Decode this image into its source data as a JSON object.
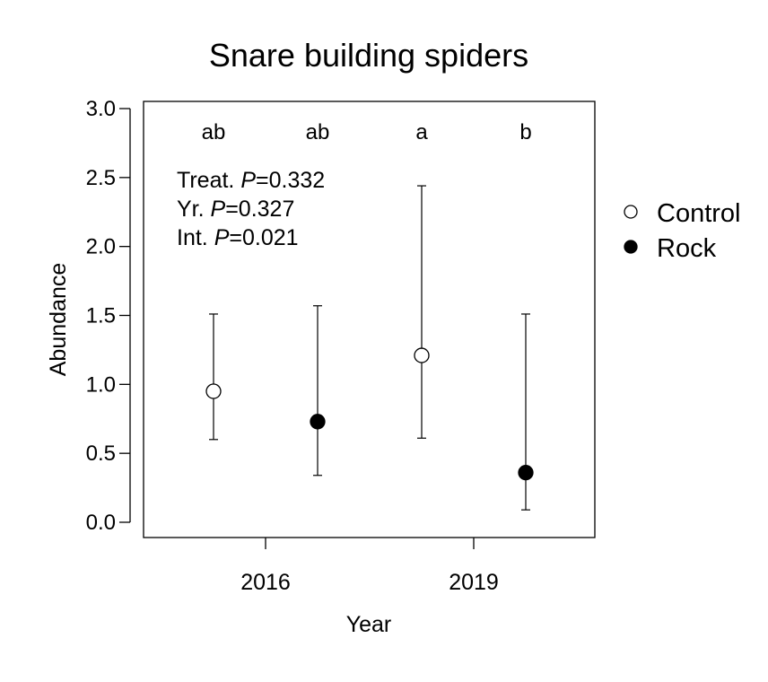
{
  "chart_data": {
    "type": "scatter",
    "title": "Snare building spiders",
    "xlabel": "Year",
    "ylabel": "Abundance",
    "ylim": [
      0,
      3
    ],
    "yticks": [
      "0.0",
      "0.5",
      "1.0",
      "1.5",
      "2.0",
      "2.5",
      "3.0"
    ],
    "categories": [
      "2016",
      "2019"
    ],
    "series": [
      {
        "name": "Control",
        "marker": "open-circle",
        "points": [
          {
            "x": "2016",
            "y": 0.95,
            "lower": 0.6,
            "upper": 1.51,
            "letter": "ab"
          },
          {
            "x": "2019",
            "y": 1.21,
            "lower": 0.61,
            "upper": 2.44,
            "letter": "a"
          }
        ]
      },
      {
        "name": "Rock",
        "marker": "filled-circle",
        "points": [
          {
            "x": "2016",
            "y": 0.73,
            "lower": 0.34,
            "upper": 1.57,
            "letter": "ab"
          },
          {
            "x": "2019",
            "y": 0.36,
            "lower": 0.09,
            "upper": 1.51,
            "letter": "b"
          }
        ]
      }
    ],
    "annotations": [
      {
        "prefix": "Treat. ",
        "italic": "P",
        "suffix": "=0.332"
      },
      {
        "prefix": "Yr. ",
        "italic": "P",
        "suffix": "=0.327"
      },
      {
        "prefix": "Int. ",
        "italic": "P",
        "suffix": "=0.021"
      }
    ],
    "legend_position": "right",
    "grid": false
  },
  "colors": {
    "control_fill": "#ffffff",
    "rock_fill": "#000000",
    "stroke": "#000000"
  }
}
